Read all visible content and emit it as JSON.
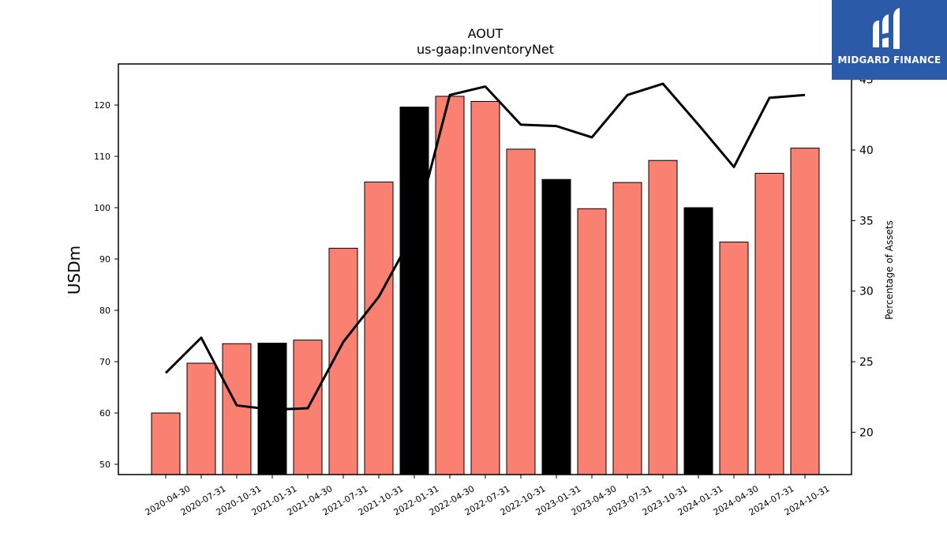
{
  "chart_data": {
    "type": "bar",
    "title": "AOUT",
    "subtitle": "us-gaap:InventoryNet",
    "ylabel": "USDm",
    "y2label": "Percentage of Assets",
    "ylim": [
      48,
      128
    ],
    "y2lim": [
      17.0,
      46.1
    ],
    "yticks": [
      50,
      60,
      70,
      80,
      90,
      100,
      110,
      120
    ],
    "y2ticks": [
      20,
      25,
      30,
      35,
      40,
      45
    ],
    "categories": [
      "2020-04-30",
      "2020-07-31",
      "2020-10-31",
      "2021-01-31",
      "2021-04-30",
      "2021-07-31",
      "2021-10-31",
      "2022-01-31",
      "2022-04-30",
      "2022-07-31",
      "2022-10-31",
      "2023-01-31",
      "2023-04-30",
      "2023-07-31",
      "2023-10-31",
      "2024-01-31",
      "2024-04-30",
      "2024-07-31",
      "2024-10-31"
    ],
    "series": [
      {
        "values": [
          60.0,
          69.7,
          73.5,
          73.6,
          74.2,
          92.1,
          105.0,
          119.6,
          121.7,
          120.7,
          111.4,
          105.5,
          99.8,
          104.9,
          109.2,
          100.0,
          93.3,
          106.7,
          111.6
        ],
        "colors": [
          "#fa8072",
          "#fa8072",
          "#fa8072",
          "#000000",
          "#fa8072",
          "#fa8072",
          "#fa8072",
          "#000000",
          "#fa8072",
          "#fa8072",
          "#fa8072",
          "#000000",
          "#fa8072",
          "#fa8072",
          "#fa8072",
          "#000000",
          "#fa8072",
          "#fa8072",
          "#fa8072"
        ]
      },
      {
        "axis": "right",
        "type": "line",
        "color": "#000000",
        "values": [
          24.2,
          26.7,
          21.9,
          21.6,
          21.7,
          26.4,
          29.6,
          34.2,
          43.9,
          44.5,
          41.8,
          41.7,
          40.9,
          43.9,
          44.7,
          41.8,
          38.8,
          43.7,
          43.9
        ]
      }
    ],
    "grid": false,
    "legend": "none"
  },
  "logo": {
    "text": "MIDGARD FINANCE"
  }
}
